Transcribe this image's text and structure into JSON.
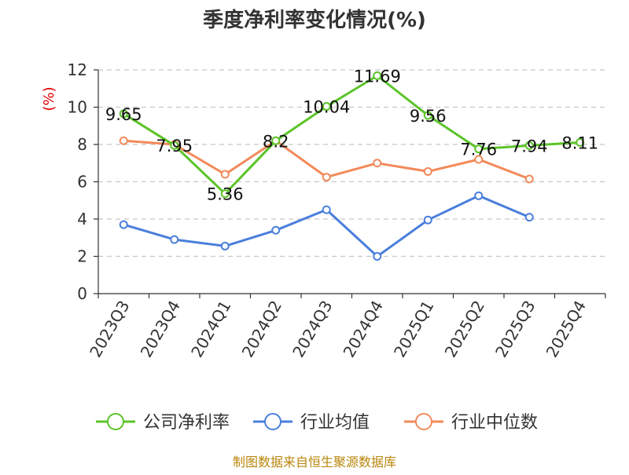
{
  "chart_data": {
    "type": "line",
    "title": "季度净利率变化情况(%)",
    "ylabel": "(%)",
    "xlabel": "",
    "ylim": [
      0,
      12
    ],
    "yticks": [
      0,
      2,
      4,
      6,
      8,
      10,
      12
    ],
    "grid": true,
    "legend_position": "bottom",
    "categories": [
      "2023Q3",
      "2023Q4",
      "2024Q1",
      "2024Q2",
      "2024Q3",
      "2024Q4",
      "2025Q1",
      "2025Q2",
      "2025Q3",
      "2025Q4"
    ],
    "series": [
      {
        "name": "公司净利率",
        "color": "#5cc42a",
        "values": [
          9.65,
          7.95,
          5.36,
          8.2,
          10.04,
          11.69,
          9.56,
          7.76,
          7.94,
          8.11
        ],
        "labels": [
          "9.65",
          "7.95",
          "5.36",
          "8.2",
          "10.04",
          "11.69",
          "9.56",
          "7.76",
          "7.94",
          "8.11"
        ]
      },
      {
        "name": "行业均值",
        "color": "#4a7fdc",
        "values": [
          3.7,
          2.9,
          2.55,
          3.4,
          4.5,
          2.0,
          3.95,
          5.25,
          4.1,
          null
        ]
      },
      {
        "name": "行业中位数",
        "color": "#f38a5a",
        "values": [
          8.2,
          8.0,
          6.4,
          8.2,
          6.25,
          7.0,
          6.55,
          7.2,
          6.15,
          null
        ]
      }
    ]
  },
  "source": "制图数据来自恒生聚源数据库"
}
